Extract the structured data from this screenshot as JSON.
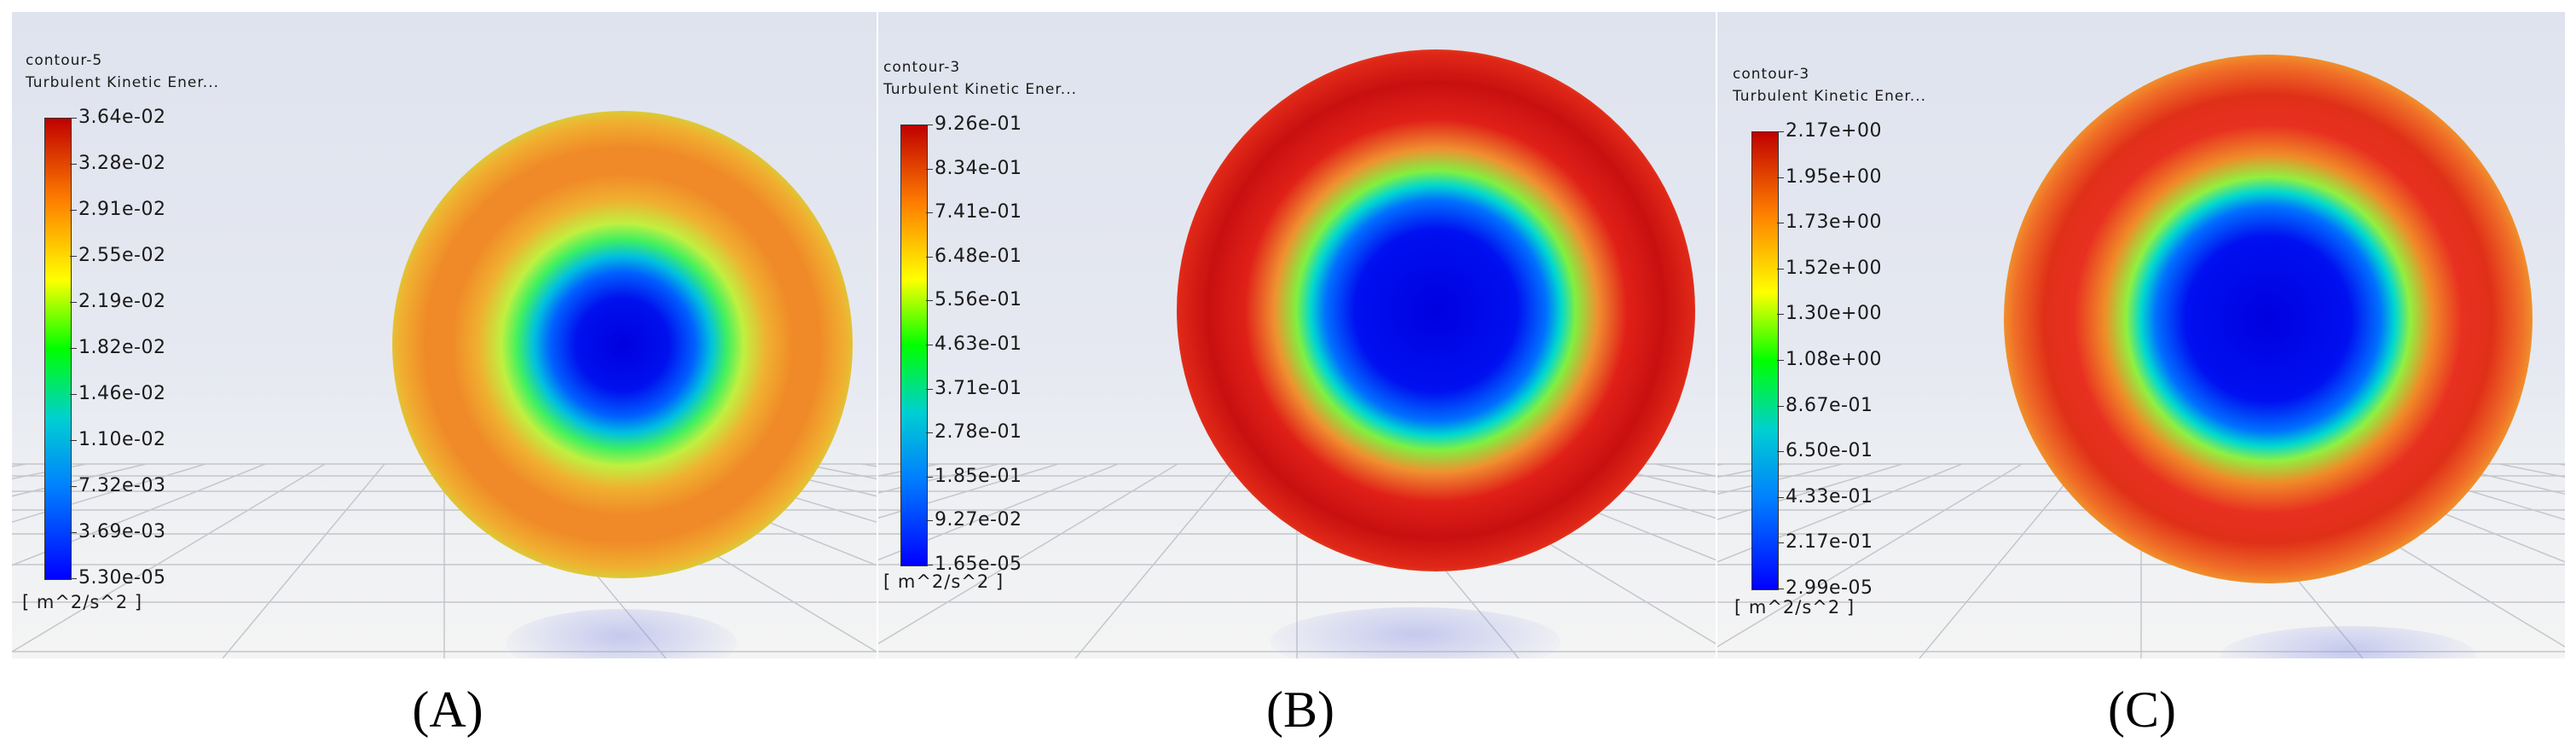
{
  "panels": [
    {
      "title": "contour-5",
      "variable": "Turbulent Kinetic Ener...",
      "ticks": [
        "3.64e-02",
        "3.28e-02",
        "2.91e-02",
        "2.55e-02",
        "2.19e-02",
        "1.82e-02",
        "1.46e-02",
        "1.10e-02",
        "7.32e-03",
        "3.69e-03",
        "5.30e-05"
      ],
      "units": "[ m^2/s^2 ]",
      "caption": "(A)"
    },
    {
      "title": "contour-3",
      "variable": "Turbulent Kinetic Ener...",
      "ticks": [
        "9.26e-01",
        "8.34e-01",
        "7.41e-01",
        "6.48e-01",
        "5.56e-01",
        "4.63e-01",
        "3.71e-01",
        "2.78e-01",
        "1.85e-01",
        "9.27e-02",
        "1.65e-05"
      ],
      "units": "[ m^2/s^2 ]",
      "caption": "(B)"
    },
    {
      "title": "contour-3",
      "variable": "Turbulent Kinetic Ener...",
      "ticks": [
        "2.17e+00",
        "1.95e+00",
        "1.73e+00",
        "1.52e+00",
        "1.30e+00",
        "1.08e+00",
        "8.67e-01",
        "6.50e-01",
        "4.33e-01",
        "2.17e-01",
        "2.99e-05"
      ],
      "units": "[ m^2/s^2 ]",
      "caption": "(C)"
    }
  ],
  "colorbar_colors": [
    "#0000ff",
    "#0080ff",
    "#00d0d0",
    "#00ff00",
    "#ffff00",
    "#ff8000",
    "#c00000"
  ]
}
